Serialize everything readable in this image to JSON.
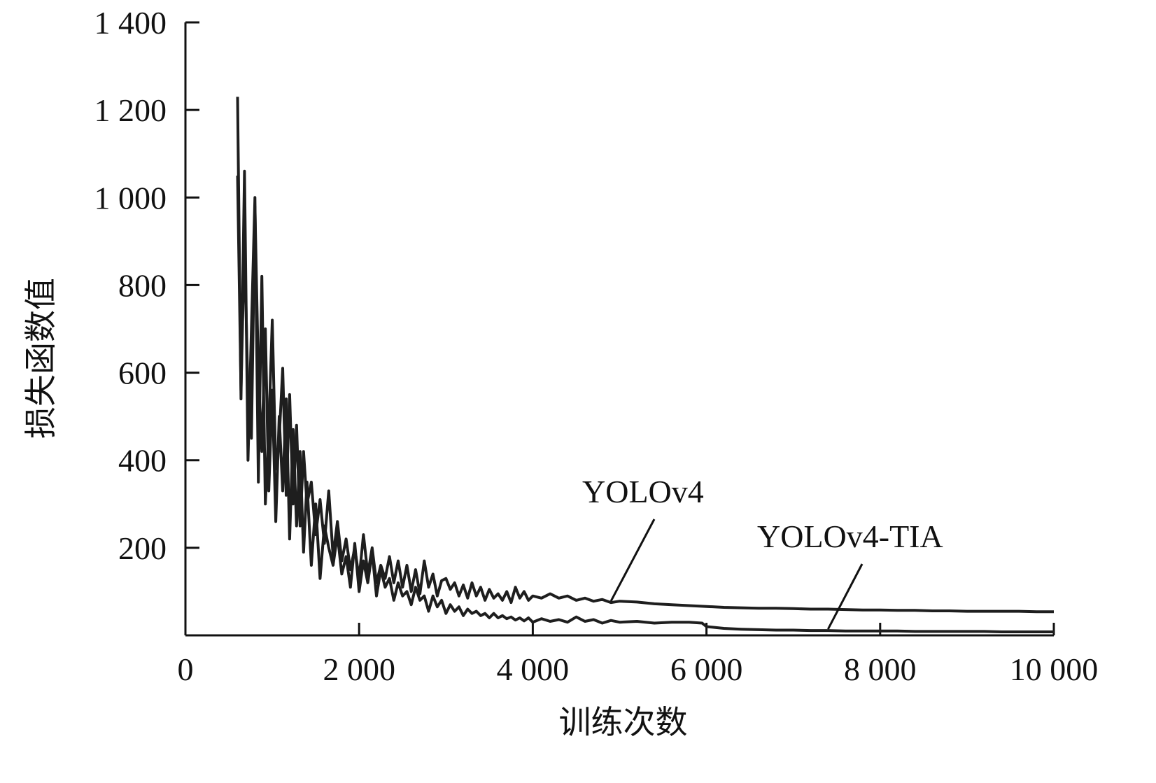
{
  "chart_data": {
    "type": "line",
    "title": "",
    "xlabel": "训练次数",
    "ylabel": "损失函数值",
    "xlim": [
      0,
      10000
    ],
    "ylim": [
      0,
      1400
    ],
    "x_ticks": [
      {
        "value": 0,
        "label": "0"
      },
      {
        "value": 2000,
        "label": "2 000"
      },
      {
        "value": 4000,
        "label": "4 000"
      },
      {
        "value": 6000,
        "label": "6 000"
      },
      {
        "value": 8000,
        "label": "8 000"
      },
      {
        "value": 10000,
        "label": "10 000"
      }
    ],
    "y_ticks": [
      {
        "value": 200,
        "label": "200"
      },
      {
        "value": 400,
        "label": "400"
      },
      {
        "value": 600,
        "label": "600"
      },
      {
        "value": 800,
        "label": "800"
      },
      {
        "value": 1000,
        "label": "1 000"
      },
      {
        "value": 1200,
        "label": "1 200"
      },
      {
        "value": 1400,
        "label": "1 400"
      }
    ],
    "grid": false,
    "legend": "none",
    "annotations": [
      {
        "text": "YOLOv4",
        "series": "YOLOv4",
        "at_x": 4900
      },
      {
        "text": "YOLOv4-TIA",
        "series": "YOLOv4-TIA",
        "at_x": 7400
      }
    ],
    "series": [
      {
        "name": "YOLOv4",
        "color": "#1e1e1e",
        "x": [
          600,
          640,
          680,
          720,
          760,
          800,
          840,
          880,
          920,
          960,
          1000,
          1040,
          1080,
          1120,
          1160,
          1200,
          1240,
          1280,
          1320,
          1360,
          1400,
          1450,
          1500,
          1550,
          1600,
          1650,
          1700,
          1750,
          1800,
          1850,
          1900,
          1950,
          2000,
          2050,
          2100,
          2150,
          2200,
          2250,
          2300,
          2350,
          2400,
          2450,
          2500,
          2550,
          2600,
          2650,
          2700,
          2750,
          2800,
          2850,
          2900,
          2950,
          3000,
          3050,
          3100,
          3150,
          3200,
          3250,
          3300,
          3350,
          3400,
          3450,
          3500,
          3550,
          3600,
          3650,
          3700,
          3750,
          3800,
          3850,
          3900,
          3950,
          4000,
          4100,
          4200,
          4300,
          4400,
          4500,
          4600,
          4700,
          4800,
          4900,
          5000,
          5200,
          5400,
          5600,
          5800,
          6000,
          6200,
          6400,
          6600,
          6800,
          7000,
          7200,
          7400,
          7600,
          7800,
          8000,
          8200,
          8400,
          8600,
          8800,
          9000,
          9200,
          9400,
          9600,
          9800,
          10000
        ],
        "y": [
          1230,
          540,
          1060,
          400,
          700,
          1000,
          350,
          820,
          300,
          470,
          720,
          380,
          450,
          610,
          320,
          550,
          300,
          480,
          250,
          420,
          300,
          350,
          230,
          310,
          210,
          330,
          180,
          260,
          170,
          220,
          150,
          200,
          130,
          230,
          140,
          200,
          120,
          160,
          130,
          180,
          120,
          170,
          110,
          160,
          100,
          150,
          95,
          170,
          110,
          140,
          90,
          125,
          130,
          105,
          120,
          90,
          115,
          85,
          120,
          90,
          110,
          80,
          105,
          85,
          95,
          80,
          100,
          75,
          110,
          85,
          100,
          80,
          90,
          85,
          95,
          85,
          90,
          80,
          85,
          78,
          82,
          75,
          78,
          76,
          72,
          70,
          68,
          66,
          64,
          63,
          62,
          62,
          61,
          60,
          60,
          59,
          58,
          58,
          57,
          57,
          56,
          56,
          55,
          55,
          55,
          55,
          54,
          54
        ]
      },
      {
        "name": "YOLOv4-TIA",
        "color": "#1e1e1e",
        "x": [
          600,
          640,
          680,
          720,
          760,
          800,
          840,
          880,
          920,
          960,
          1000,
          1040,
          1080,
          1120,
          1160,
          1200,
          1240,
          1280,
          1320,
          1360,
          1400,
          1450,
          1500,
          1550,
          1600,
          1650,
          1700,
          1750,
          1800,
          1850,
          1900,
          1950,
          2000,
          2050,
          2100,
          2150,
          2200,
          2250,
          2300,
          2350,
          2400,
          2450,
          2500,
          2550,
          2600,
          2650,
          2700,
          2750,
          2800,
          2850,
          2900,
          2950,
          3000,
          3050,
          3100,
          3150,
          3200,
          3250,
          3300,
          3350,
          3400,
          3450,
          3500,
          3550,
          3600,
          3650,
          3700,
          3750,
          3800,
          3850,
          3900,
          3950,
          4000,
          4100,
          4200,
          4300,
          4400,
          4500,
          4600,
          4700,
          4800,
          4900,
          5000,
          5200,
          5400,
          5600,
          5800,
          5950,
          6000,
          6200,
          6400,
          6600,
          6800,
          7000,
          7200,
          7400,
          7600,
          7800,
          8000,
          8200,
          8400,
          8600,
          8800,
          9000,
          9200,
          9400,
          9600,
          9800,
          10000
        ],
        "y": [
          1050,
          560,
          900,
          550,
          450,
          980,
          600,
          420,
          700,
          330,
          560,
          260,
          500,
          330,
          540,
          220,
          470,
          250,
          420,
          190,
          350,
          160,
          300,
          130,
          250,
          200,
          160,
          230,
          140,
          180,
          110,
          210,
          100,
          170,
          120,
          190,
          90,
          150,
          110,
          130,
          80,
          120,
          90,
          100,
          70,
          110,
          80,
          90,
          55,
          90,
          65,
          80,
          50,
          70,
          55,
          65,
          45,
          60,
          50,
          55,
          45,
          50,
          40,
          50,
          40,
          45,
          38,
          42,
          35,
          40,
          33,
          40,
          30,
          38,
          32,
          36,
          30,
          42,
          32,
          36,
          28,
          34,
          30,
          32,
          28,
          30,
          30,
          28,
          20,
          16,
          14,
          13,
          12,
          12,
          11,
          11,
          10,
          10,
          10,
          10,
          9,
          9,
          9,
          9,
          9,
          8,
          8,
          8,
          8
        ]
      }
    ]
  }
}
